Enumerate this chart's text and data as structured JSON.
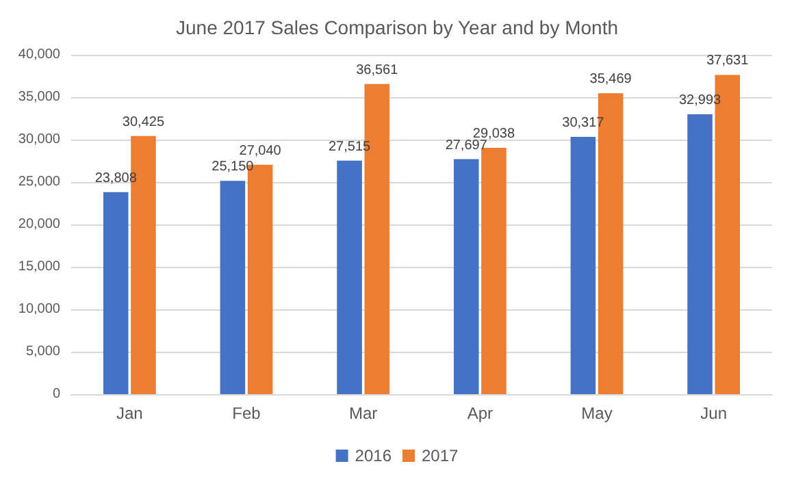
{
  "chart_data": {
    "type": "bar",
    "title": "June 2017 Sales Comparison by Year and by Month",
    "categories": [
      "Jan",
      "Feb",
      "Mar",
      "Apr",
      "May",
      "Jun"
    ],
    "series": [
      {
        "name": "2016",
        "color": "#4472c4",
        "values": [
          23808,
          25150,
          27515,
          27697,
          30317,
          32993
        ],
        "value_labels": [
          "23,808",
          "25,150",
          "27,515",
          "27,697",
          "30,317",
          "32,993"
        ]
      },
      {
        "name": "2017",
        "color": "#ed7d31",
        "values": [
          30425,
          27040,
          36561,
          29038,
          35469,
          37631
        ],
        "value_labels": [
          "30,425",
          "27,040",
          "36,561",
          "29,038",
          "35,469",
          "37,631"
        ]
      }
    ],
    "ylim": [
      0,
      40000
    ],
    "yticks": [
      {
        "value": 0,
        "label": "0"
      },
      {
        "value": 5000,
        "label": "5,000"
      },
      {
        "value": 10000,
        "label": "10,000"
      },
      {
        "value": 15000,
        "label": "15,000"
      },
      {
        "value": 20000,
        "label": "20,000"
      },
      {
        "value": 25000,
        "label": "25,000"
      },
      {
        "value": 30000,
        "label": "30,000"
      },
      {
        "value": 35000,
        "label": "35,000"
      },
      {
        "value": 40000,
        "label": "40,000"
      }
    ],
    "grid": "y",
    "legend": "bottom"
  }
}
